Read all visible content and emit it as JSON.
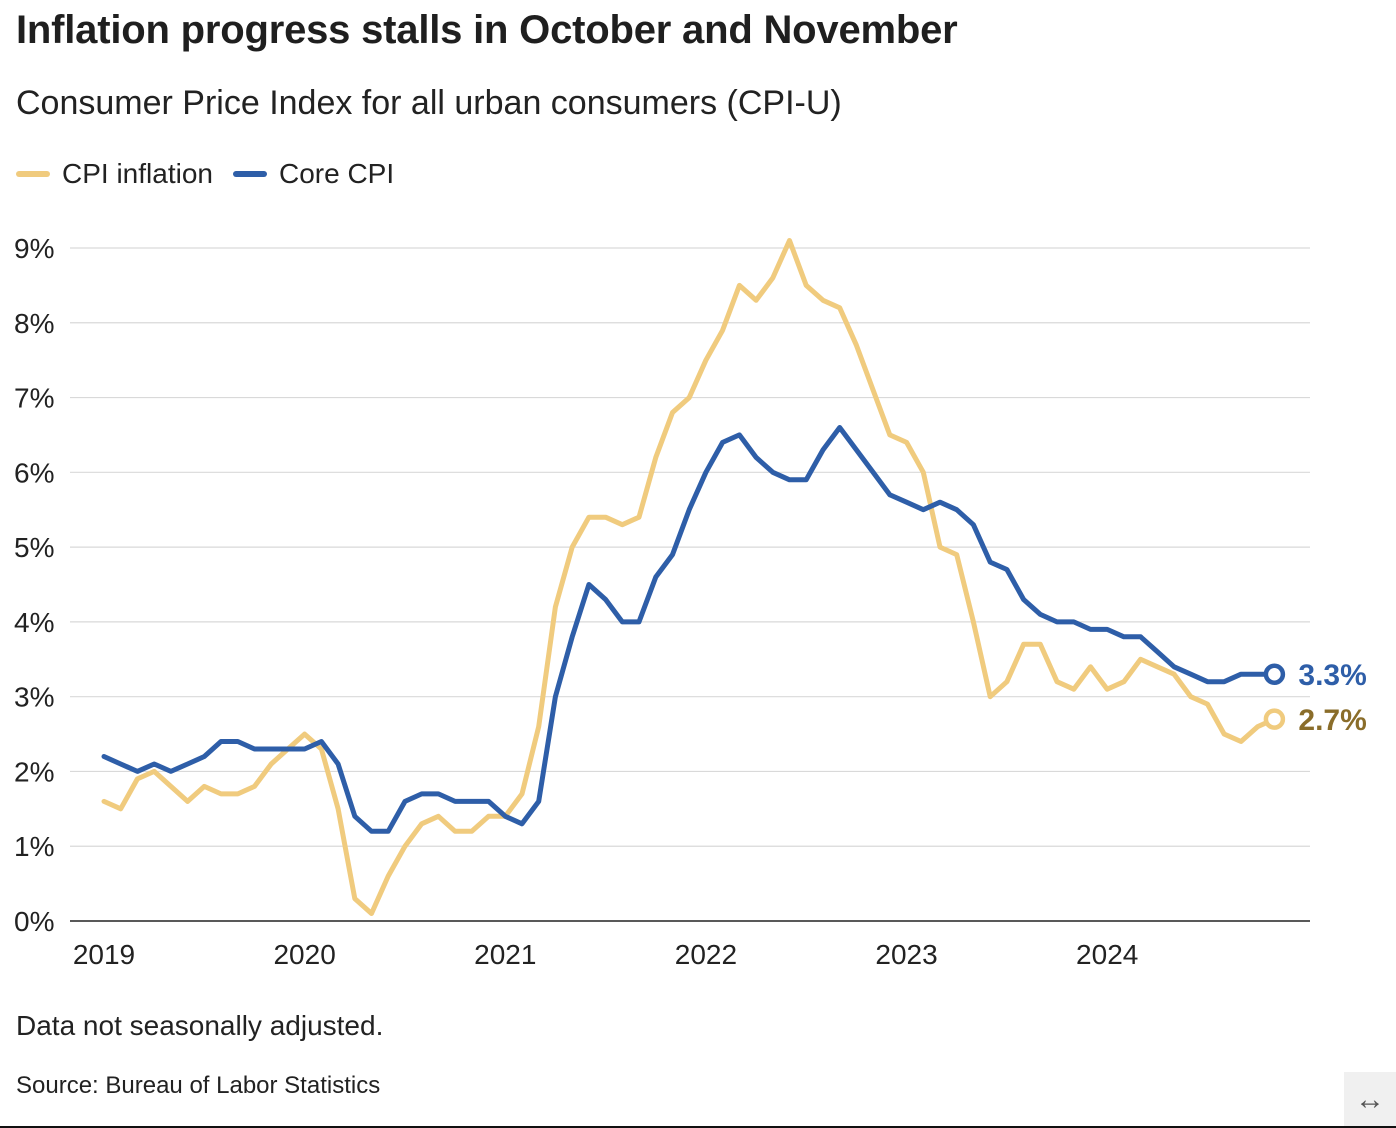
{
  "header": {
    "title": "Inflation progress stalls in October and November",
    "subtitle": "Consumer Price Index for all urban consumers (CPI-U)"
  },
  "footer": {
    "note": "Data not seasonally adjusted.",
    "source": "Source: Bureau of Labor Statistics"
  },
  "expand_icon": "↔",
  "chart_data": {
    "type": "line",
    "title": "Inflation progress stalls in October and November",
    "subtitle": "Consumer Price Index for all urban consumers (CPI-U)",
    "x_start": "2019-01",
    "x_ticks": [
      "2019",
      "2020",
      "2021",
      "2022",
      "2023",
      "2024"
    ],
    "y_ticks": [
      "0%",
      "1%",
      "2%",
      "3%",
      "4%",
      "5%",
      "6%",
      "7%",
      "8%",
      "9%"
    ],
    "ylim": [
      0,
      9
    ],
    "grid": true,
    "legend_position": "top-left",
    "series": [
      {
        "name": "CPI inflation",
        "color": "#f0cb7e",
        "label_color": "#8a6d2a",
        "end_label": "2.7%",
        "values": [
          1.6,
          1.5,
          1.9,
          2.0,
          1.8,
          1.6,
          1.8,
          1.7,
          1.7,
          1.8,
          2.1,
          2.3,
          2.5,
          2.3,
          1.5,
          0.3,
          0.1,
          0.6,
          1.0,
          1.3,
          1.4,
          1.2,
          1.2,
          1.4,
          1.4,
          1.7,
          2.6,
          4.2,
          5.0,
          5.4,
          5.4,
          5.3,
          5.4,
          6.2,
          6.8,
          7.0,
          7.5,
          7.9,
          8.5,
          8.3,
          8.6,
          9.1,
          8.5,
          8.3,
          8.2,
          7.7,
          7.1,
          6.5,
          6.4,
          6.0,
          5.0,
          4.9,
          4.0,
          3.0,
          3.2,
          3.7,
          3.7,
          3.2,
          3.1,
          3.4,
          3.1,
          3.2,
          3.5,
          3.4,
          3.3,
          3.0,
          2.9,
          2.5,
          2.4,
          2.6,
          2.7
        ]
      },
      {
        "name": "Core CPI",
        "color": "#2e5ea8",
        "label_color": "#2e5ea8",
        "end_label": "3.3%",
        "values": [
          2.2,
          2.1,
          2.0,
          2.1,
          2.0,
          2.1,
          2.2,
          2.4,
          2.4,
          2.3,
          2.3,
          2.3,
          2.3,
          2.4,
          2.1,
          1.4,
          1.2,
          1.2,
          1.6,
          1.7,
          1.7,
          1.6,
          1.6,
          1.6,
          1.4,
          1.3,
          1.6,
          3.0,
          3.8,
          4.5,
          4.3,
          4.0,
          4.0,
          4.6,
          4.9,
          5.5,
          6.0,
          6.4,
          6.5,
          6.2,
          6.0,
          5.9,
          5.9,
          6.3,
          6.6,
          6.3,
          6.0,
          5.7,
          5.6,
          5.5,
          5.6,
          5.5,
          5.3,
          4.8,
          4.7,
          4.3,
          4.1,
          4.0,
          4.0,
          3.9,
          3.9,
          3.8,
          3.8,
          3.6,
          3.4,
          3.3,
          3.2,
          3.2,
          3.3,
          3.3,
          3.3
        ]
      }
    ]
  }
}
